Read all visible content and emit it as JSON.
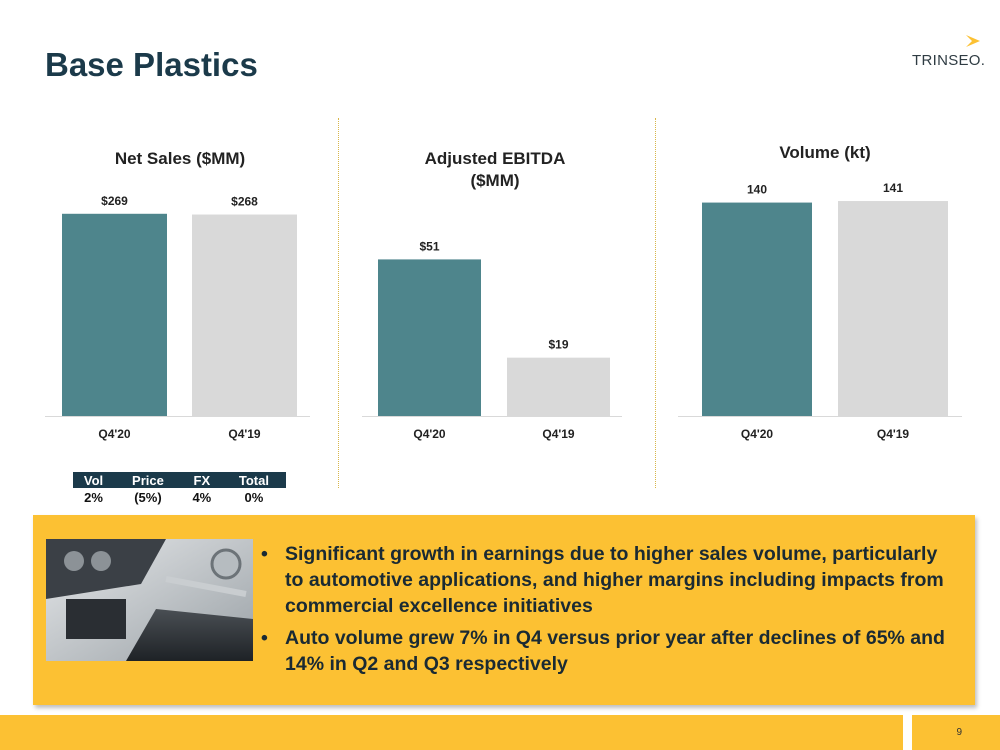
{
  "header": {
    "title": "Base Plastics",
    "logo_text": "TRINSEO."
  },
  "chart_data": [
    {
      "type": "bar",
      "title": "Net Sales ($MM)",
      "categories": [
        "Q4'20",
        "Q4'19"
      ],
      "values": [
        269,
        268
      ],
      "data_labels": [
        "$269",
        "$268"
      ],
      "colors": [
        "#4e858c",
        "#d9d9d9"
      ],
      "ylim": [
        0,
        290
      ],
      "grid": false
    },
    {
      "type": "bar",
      "title": "Adjusted EBITDA ($MM)",
      "categories": [
        "Q4'20",
        "Q4'19"
      ],
      "values": [
        51,
        19
      ],
      "data_labels": [
        "$51",
        "$19"
      ],
      "colors": [
        "#4e858c",
        "#d9d9d9"
      ],
      "ylim": [
        0,
        71
      ],
      "grid": false
    },
    {
      "type": "bar",
      "title": "Volume (kt)",
      "categories": [
        "Q4'20",
        "Q4'19"
      ],
      "values": [
        140,
        141
      ],
      "data_labels": [
        "140",
        "141"
      ],
      "colors": [
        "#4e858c",
        "#d9d9d9"
      ],
      "ylim": [
        0,
        143
      ],
      "grid": false
    }
  ],
  "bridge_table": {
    "headers": [
      "Vol",
      "Price",
      "FX",
      "Total"
    ],
    "values": [
      "2%",
      "(5%)",
      "4%",
      "0%"
    ]
  },
  "summary": {
    "bullets": [
      "Significant growth in earnings due to higher sales volume, particularly to automotive applications, and higher margins including impacts from commercial excellence initiatives",
      "Auto volume grew 7% in Q4 versus prior year after declines of 65% and 14% in Q2 and Q3 respectively"
    ],
    "bullet_glyph": "•",
    "accent_color": "#fcc133"
  },
  "footer": {
    "page_number": "9"
  }
}
